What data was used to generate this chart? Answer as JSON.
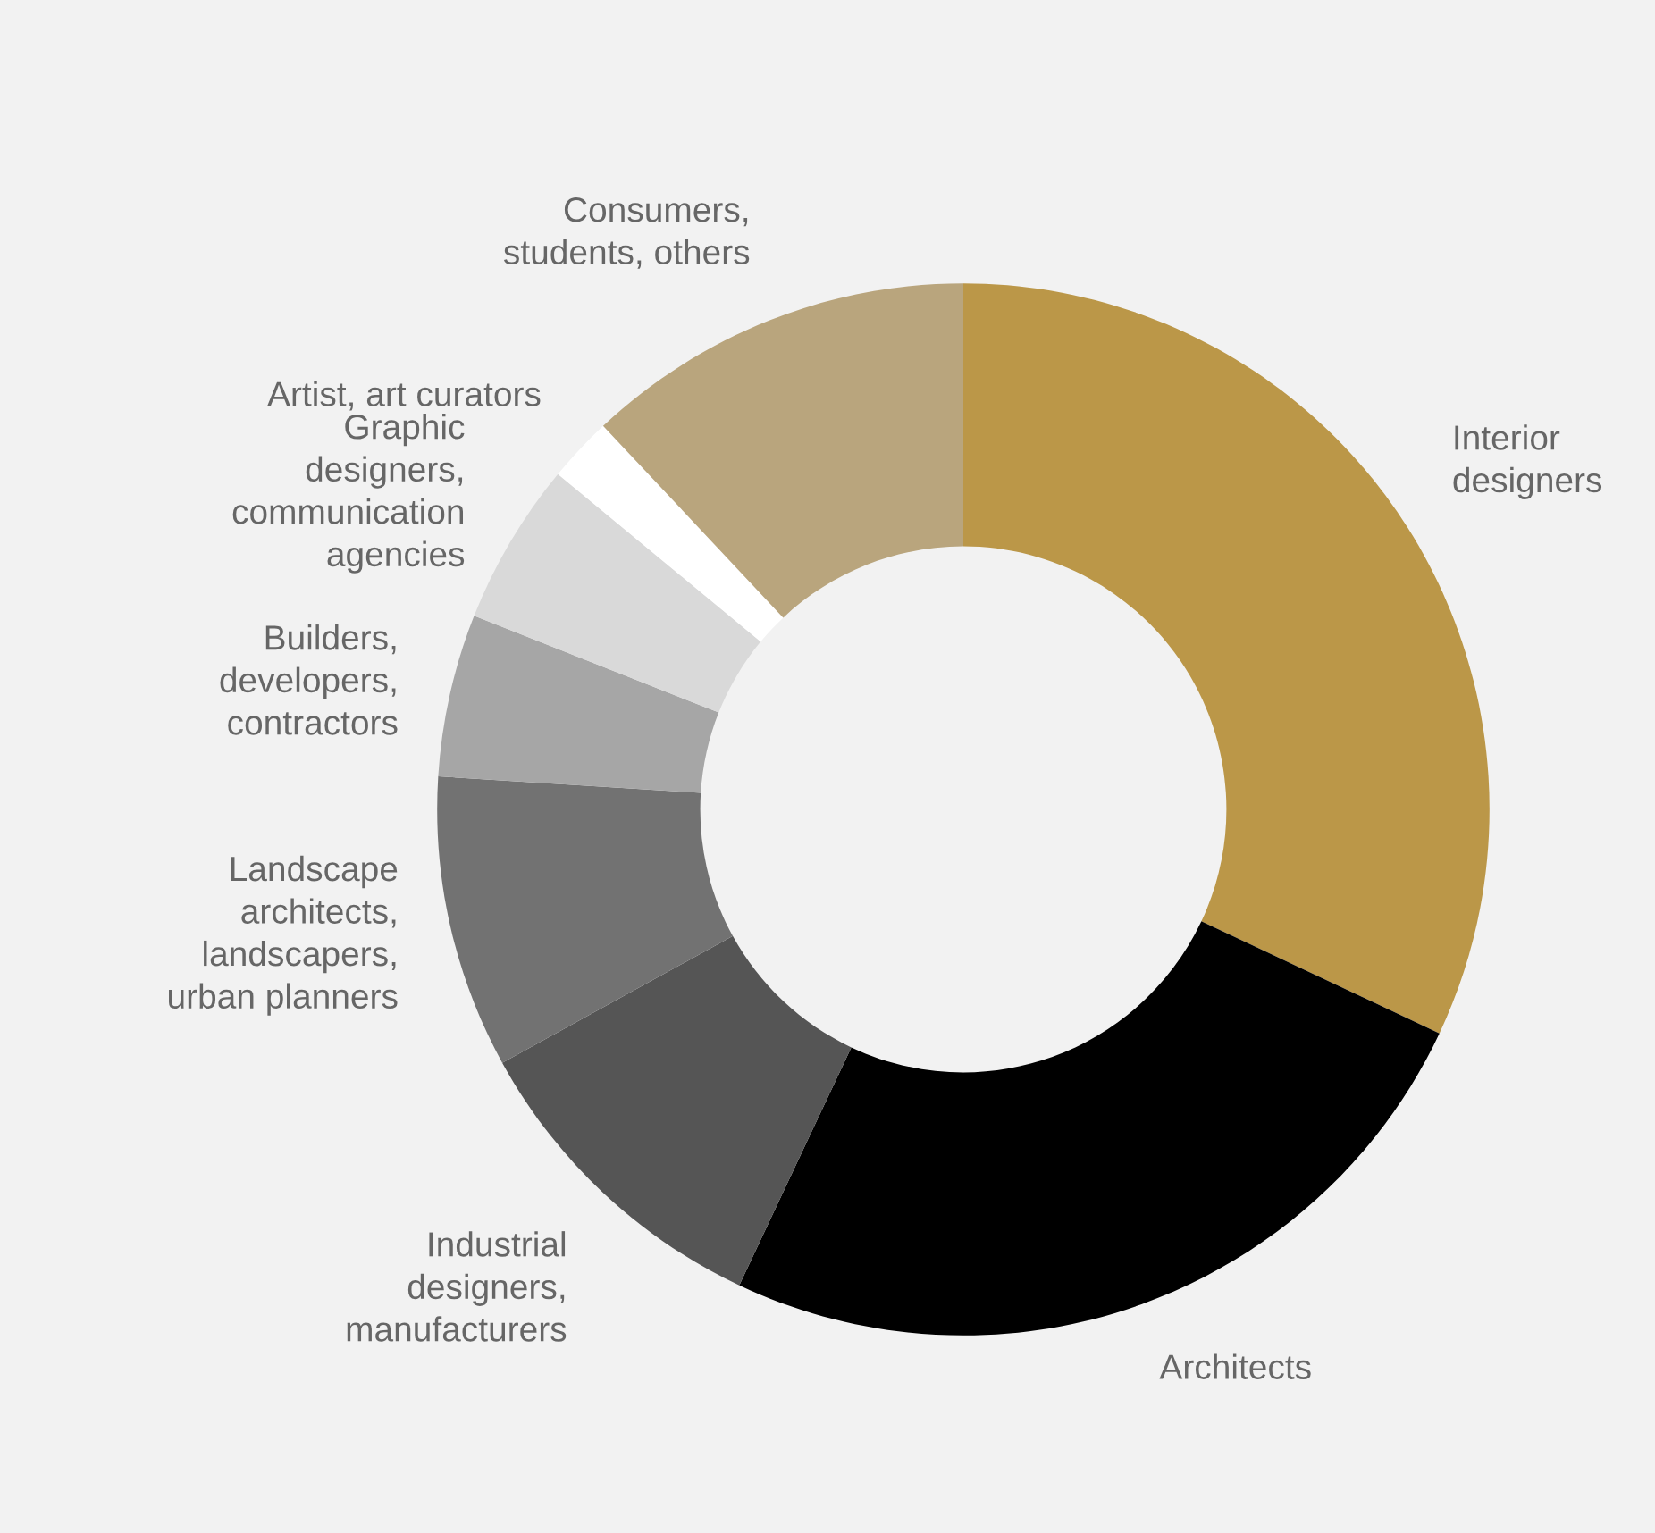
{
  "chart_data": {
    "type": "donut",
    "categories": [
      "Interior\ndesigners",
      "Architects",
      "Industrial\ndesigners,\nmanufacturers",
      "Landscape\narchitects,\nlandscapers,\nurban planners",
      "Builders,\ndevelopers,\ncontractors",
      "Graphic\ndesigners,\ncommunication\nagencies",
      "Artist, art curators",
      "Consumers,\nstudents, others"
    ],
    "values": [
      32,
      25,
      10,
      9,
      5,
      5,
      2,
      12
    ],
    "colors": [
      "#bb9748",
      "#000000",
      "#555555",
      "#727272",
      "#a6a6a6",
      "#d9d9d9",
      "#ffffff",
      "#b9a57d"
    ],
    "legend": false
  }
}
